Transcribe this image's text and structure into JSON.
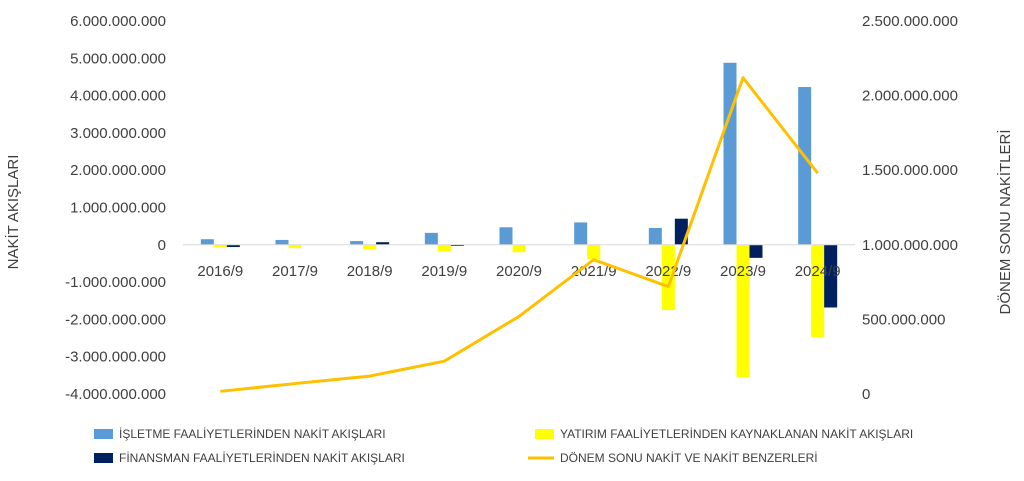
{
  "chart_data": {
    "type": "bar",
    "categories": [
      "2016/9",
      "2017/9",
      "2018/9",
      "2019/9",
      "2020/9",
      "2021/9",
      "2022/9",
      "2023/9",
      "2024/9"
    ],
    "y_left": {
      "label": "NAKİT AKIŞLARI",
      "ylim": [
        -4000000000,
        6000000000
      ],
      "ticks": [
        6000000000,
        5000000000,
        4000000000,
        3000000000,
        2000000000,
        1000000000,
        0,
        -1000000000,
        -2000000000,
        -3000000000,
        -4000000000
      ],
      "tick_labels": [
        "6.000.000.000",
        "5.000.000.000",
        "4.000.000.000",
        "3.000.000.000",
        "2.000.000.000",
        "1.000.000.000",
        "0",
        "-1.000.000.000",
        "-2.000.000.000",
        "-3.000.000.000",
        "-4.000.000.000"
      ]
    },
    "y_right": {
      "label": "DÖNEM SONU NAKİTLERİ",
      "ylim": [
        0,
        2500000000
      ],
      "ticks": [
        2500000000,
        2000000000,
        1500000000,
        1000000000,
        500000000,
        0
      ],
      "tick_labels": [
        "2.500.000.000",
        "2.000.000.000",
        "1.500.000.000",
        "1.000.000.000",
        "500.000.000",
        "0"
      ]
    },
    "series": [
      {
        "name": "İŞLETME FAALİYETLERİNDEN NAKİT AKIŞLARI",
        "type": "bar",
        "axis": "left",
        "color": "#5B9BD5",
        "values": [
          150000000,
          130000000,
          100000000,
          320000000,
          470000000,
          600000000,
          450000000,
          4880000000,
          4230000000
        ]
      },
      {
        "name": "YATIRIM FAALİYETLERİNDEN KAYNAKLANAN NAKİT AKIŞLARI",
        "type": "bar",
        "axis": "left",
        "color": "#FFFF00",
        "values": [
          -60000000,
          -90000000,
          -120000000,
          -180000000,
          -200000000,
          -380000000,
          -1750000000,
          -3550000000,
          -2480000000
        ]
      },
      {
        "name": "FİNANSMAN FAALİYETLERİNDEN NAKİT AKIŞLARI",
        "type": "bar",
        "axis": "left",
        "color": "#002060",
        "values": [
          -60000000,
          0,
          70000000,
          -30000000,
          0,
          0,
          700000000,
          -350000000,
          -1680000000
        ]
      },
      {
        "name": "DÖNEM SONU NAKİT VE NAKİT BENZERLERİ",
        "type": "line",
        "axis": "right",
        "color": "#FFC000",
        "values": [
          18000000,
          70000000,
          120000000,
          220000000,
          520000000,
          900000000,
          720000000,
          2120000000,
          1480000000
        ]
      }
    ],
    "legend": "bottom",
    "grid": false
  }
}
